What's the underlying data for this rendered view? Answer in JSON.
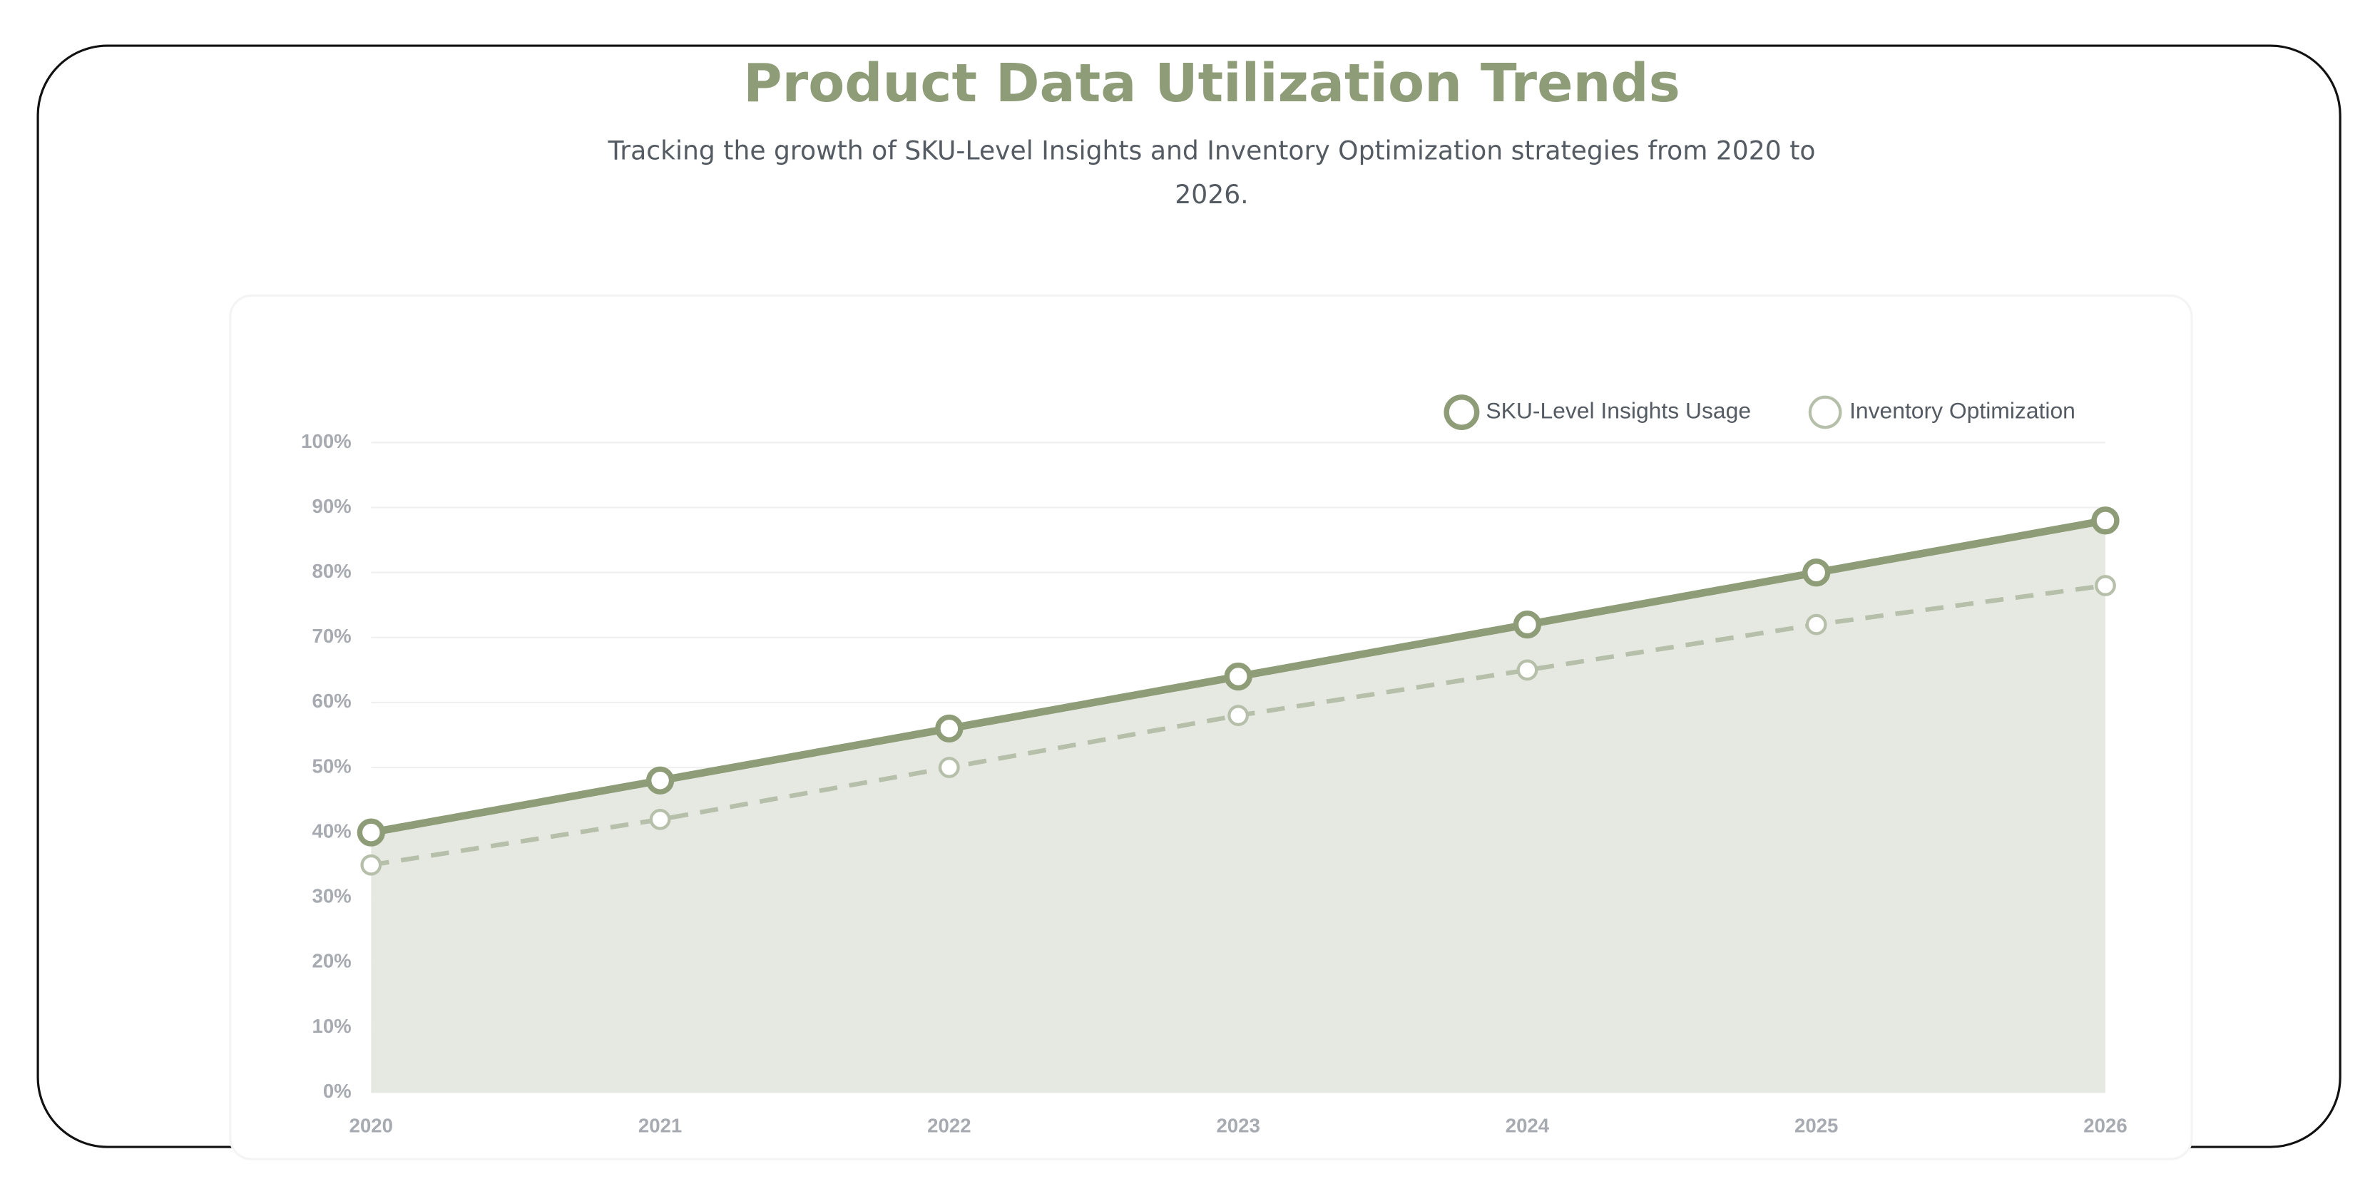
{
  "chart_data": {
    "type": "line",
    "title": "Product Data Utilization Trends",
    "subtitle": "Tracking the growth of SKU-Level Insights and Inventory Optimization strategies from 2020 to 2026.",
    "categories": [
      "2020",
      "2021",
      "2022",
      "2023",
      "2024",
      "2025",
      "2026"
    ],
    "series": [
      {
        "name": "SKU-Level Insights Usage",
        "color": "#8e9d78",
        "values": [
          40,
          48,
          56,
          64,
          72,
          80,
          88
        ],
        "fill": "#e6e9e1",
        "dashed": false
      },
      {
        "name": "Inventory Optimization",
        "color": "#b6bfa9",
        "values": [
          35,
          42,
          50,
          58,
          65,
          72,
          78
        ],
        "dashed": true
      }
    ],
    "ylim": [
      0,
      100
    ],
    "yticks": [
      {
        "value": 0,
        "label": "0%"
      },
      {
        "value": 10,
        "label": "10%"
      },
      {
        "value": 20,
        "label": "20%"
      },
      {
        "value": 30,
        "label": "30%"
      },
      {
        "value": 40,
        "label": "40%"
      },
      {
        "value": 50,
        "label": "50%"
      },
      {
        "value": 60,
        "label": "60%"
      },
      {
        "value": 70,
        "label": "70%"
      },
      {
        "value": 80,
        "label": "80%"
      },
      {
        "value": 90,
        "label": "90%"
      },
      {
        "value": 100,
        "label": "100%"
      }
    ],
    "grid": true,
    "legend": "top-right"
  }
}
